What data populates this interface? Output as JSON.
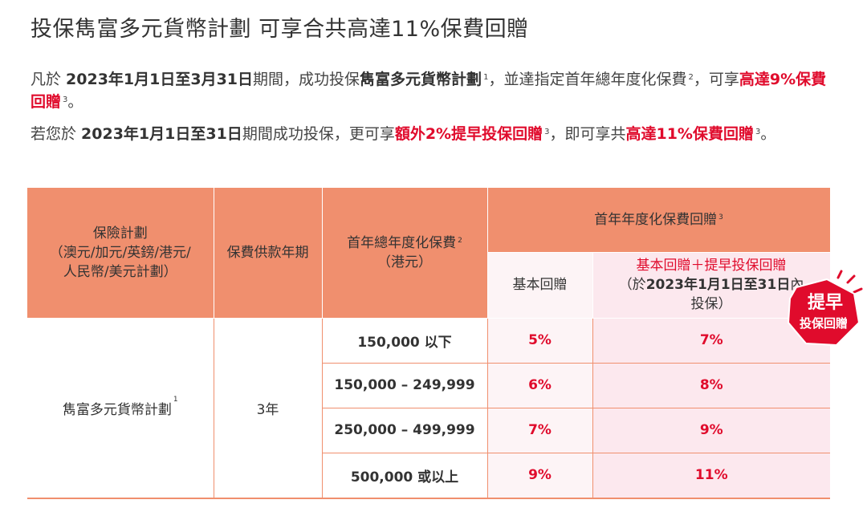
{
  "title": "投保雋富多元貨幣計劃  可享合共高達11%保費回贈",
  "p1": {
    "t1": "凡於 ",
    "t2": "2023年1月1日至3月31日",
    "t3": "期間，成功投保",
    "t4": "雋富多元貨幣計劃",
    "s1": "1",
    "t5": "，並達指定首年總年度化保費",
    "s2": "2",
    "t6": "，可享",
    "t7": "高達9%保費回贈",
    "s3": "3",
    "t8": "。"
  },
  "p2": {
    "t1": "若您於 ",
    "t2": "2023年1月1日至31日",
    "t3": "期間成功投保，更可享",
    "t4": "額外2%提早投保回贈",
    "s1": "3",
    "t5": "，即可享共",
    "t6": "高達11%保費回贈",
    "s2": "3",
    "t7": "。"
  },
  "table": {
    "col_plan": [
      "保險計劃",
      "（澳元/加元/英鎊/港元/",
      "人民幣/美元計劃）"
    ],
    "col_term": "保費供款年期",
    "col_premium": [
      "首年總年度化保費",
      "（港元）"
    ],
    "col_premium_sup": "2",
    "col_rebate": "首年年度化保費回贈",
    "col_rebate_sup": "3",
    "sub_basic": "基本回贈",
    "sub_bonus": [
      "基本回贈＋提早投保回贈",
      "（於",
      "2023年1月1日至31日",
      "內",
      "投保）"
    ],
    "plan_name": "雋富多元貨幣計劃",
    "plan_sup": "1",
    "term": "3年",
    "rows": [
      {
        "band": "150,000 以下",
        "basic": "5%",
        "bonus": "7%"
      },
      {
        "band": "150,000 – 249,999",
        "basic": "6%",
        "bonus": "8%"
      },
      {
        "band": "250,000 – 499,999",
        "basic": "7%",
        "bonus": "9%"
      },
      {
        "band": "500,000 或以上",
        "basic": "9%",
        "bonus": "11%"
      }
    ]
  },
  "badge": {
    "line1": "提早",
    "line2": "投保回贈"
  },
  "colors": {
    "accent_red": "#e00b2c",
    "header_orange": "#f08f6e",
    "pink": "#fce8ee",
    "light_pink": "#fdf4f6"
  }
}
